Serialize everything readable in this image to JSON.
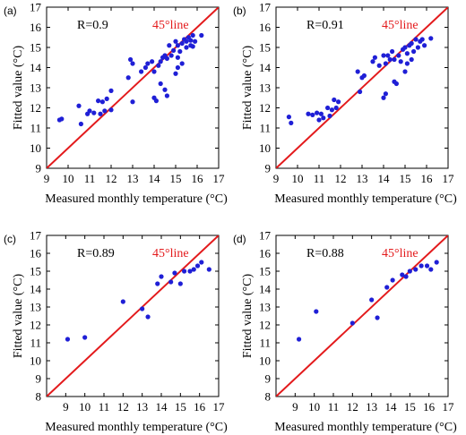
{
  "chart_data": [
    {
      "type": "scatter",
      "panel_label": "(a)",
      "r_label": "R=0.9",
      "reference_line_label": "45°line",
      "xlabel": "Measured monthly temperature (°C)",
      "ylabel": "Fitted value (°C)",
      "xlim": [
        9,
        17
      ],
      "ylim": [
        9,
        17
      ],
      "xticks": [
        9,
        10,
        11,
        12,
        13,
        14,
        15,
        16,
        17
      ],
      "yticks": [
        9,
        10,
        11,
        12,
        13,
        14,
        15,
        16,
        17
      ],
      "grid": false,
      "colors": {
        "points": "#1f1fd6",
        "reference_line": "#e31a1c"
      },
      "points": [
        [
          9.6,
          11.4
        ],
        [
          9.7,
          11.45
        ],
        [
          10.5,
          12.1
        ],
        [
          10.6,
          11.2
        ],
        [
          10.9,
          11.7
        ],
        [
          11.0,
          11.85
        ],
        [
          11.2,
          11.75
        ],
        [
          11.4,
          12.35
        ],
        [
          11.5,
          11.7
        ],
        [
          11.6,
          12.3
        ],
        [
          11.7,
          11.85
        ],
        [
          11.8,
          12.45
        ],
        [
          12.0,
          11.9
        ],
        [
          12.0,
          12.85
        ],
        [
          12.8,
          13.5
        ],
        [
          12.9,
          14.4
        ],
        [
          13.0,
          14.2
        ],
        [
          13.0,
          12.3
        ],
        [
          13.4,
          13.8
        ],
        [
          13.6,
          14.0
        ],
        [
          13.7,
          14.2
        ],
        [
          13.9,
          14.3
        ],
        [
          14.0,
          12.5
        ],
        [
          14.0,
          13.8
        ],
        [
          14.1,
          12.35
        ],
        [
          14.2,
          14.1
        ],
        [
          14.3,
          13.2
        ],
        [
          14.3,
          14.3
        ],
        [
          14.4,
          14.5
        ],
        [
          14.5,
          12.9
        ],
        [
          14.5,
          14.6
        ],
        [
          14.6,
          12.6
        ],
        [
          14.6,
          14.45
        ],
        [
          14.7,
          15.1
        ],
        [
          14.8,
          14.6
        ],
        [
          14.9,
          14.85
        ],
        [
          15.0,
          13.7
        ],
        [
          15.0,
          15.3
        ],
        [
          15.1,
          14.5
        ],
        [
          15.1,
          14.0
        ],
        [
          15.1,
          15.1
        ],
        [
          15.2,
          14.8
        ],
        [
          15.3,
          14.2
        ],
        [
          15.3,
          15.2
        ],
        [
          15.4,
          15.4
        ],
        [
          15.5,
          15.0
        ],
        [
          15.5,
          15.3
        ],
        [
          15.6,
          15.5
        ],
        [
          15.7,
          15.1
        ],
        [
          15.7,
          15.35
        ],
        [
          15.8,
          15.6
        ],
        [
          15.8,
          15.05
        ],
        [
          15.9,
          15.3
        ],
        [
          16.2,
          15.6
        ]
      ]
    },
    {
      "type": "scatter",
      "panel_label": "(b)",
      "r_label": "R=0.91",
      "reference_line_label": "45°line",
      "xlabel": "Measured monthly temperature (°C)",
      "ylabel": "Fitted value (°C)",
      "xlim": [
        9,
        17
      ],
      "ylim": [
        9,
        17
      ],
      "xticks": [
        9,
        10,
        11,
        12,
        13,
        14,
        15,
        16,
        17
      ],
      "yticks": [
        9,
        10,
        11,
        12,
        13,
        14,
        15,
        16,
        17
      ],
      "grid": false,
      "colors": {
        "points": "#1f1fd6",
        "reference_line": "#e31a1c"
      },
      "points": [
        [
          9.6,
          11.55
        ],
        [
          9.7,
          11.25
        ],
        [
          10.5,
          11.7
        ],
        [
          10.7,
          11.65
        ],
        [
          10.9,
          11.75
        ],
        [
          11.0,
          11.4
        ],
        [
          11.1,
          11.7
        ],
        [
          11.2,
          11.5
        ],
        [
          11.4,
          12.0
        ],
        [
          11.5,
          11.6
        ],
        [
          11.6,
          11.9
        ],
        [
          11.7,
          12.4
        ],
        [
          11.8,
          12.0
        ],
        [
          11.9,
          12.3
        ],
        [
          12.8,
          13.8
        ],
        [
          12.9,
          12.8
        ],
        [
          13.0,
          13.5
        ],
        [
          13.1,
          13.6
        ],
        [
          13.5,
          14.3
        ],
        [
          13.6,
          14.5
        ],
        [
          13.8,
          14.1
        ],
        [
          14.0,
          12.5
        ],
        [
          14.0,
          14.6
        ],
        [
          14.1,
          12.7
        ],
        [
          14.1,
          14.2
        ],
        [
          14.2,
          14.6
        ],
        [
          14.3,
          14.4
        ],
        [
          14.4,
          14.8
        ],
        [
          14.5,
          13.3
        ],
        [
          14.5,
          14.4
        ],
        [
          14.6,
          13.2
        ],
        [
          14.7,
          14.6
        ],
        [
          14.8,
          14.3
        ],
        [
          14.9,
          14.9
        ],
        [
          15.0,
          13.8
        ],
        [
          15.0,
          15.0
        ],
        [
          15.1,
          14.2
        ],
        [
          15.1,
          14.7
        ],
        [
          15.2,
          15.1
        ],
        [
          15.3,
          14.4
        ],
        [
          15.3,
          15.2
        ],
        [
          15.4,
          14.8
        ],
        [
          15.5,
          15.4
        ],
        [
          15.6,
          15.0
        ],
        [
          15.7,
          15.3
        ],
        [
          15.8,
          15.4
        ],
        [
          15.9,
          15.1
        ],
        [
          16.2,
          15.45
        ]
      ]
    },
    {
      "type": "scatter",
      "panel_label": "(c)",
      "r_label": "R=0.89",
      "reference_line_label": "45°line",
      "xlabel": "Measured monthly temperature (°C)",
      "ylabel": "Fitted value (°C)",
      "xlim": [
        8,
        17
      ],
      "ylim": [
        8,
        17
      ],
      "xticks": [
        9,
        10,
        11,
        12,
        13,
        14,
        15,
        16,
        17
      ],
      "yticks": [
        8,
        9,
        10,
        11,
        12,
        13,
        14,
        15,
        16,
        17
      ],
      "grid": false,
      "colors": {
        "points": "#1f1fd6",
        "reference_line": "#e31a1c"
      },
      "points": [
        [
          9.1,
          11.2
        ],
        [
          10.0,
          11.3
        ],
        [
          12.0,
          13.3
        ],
        [
          13.0,
          12.9
        ],
        [
          13.3,
          12.45
        ],
        [
          13.8,
          14.3
        ],
        [
          14.0,
          14.7
        ],
        [
          14.5,
          14.4
        ],
        [
          14.7,
          14.9
        ],
        [
          15.0,
          14.3
        ],
        [
          15.2,
          15.0
        ],
        [
          15.5,
          15.0
        ],
        [
          15.7,
          15.1
        ],
        [
          15.9,
          15.3
        ],
        [
          16.1,
          15.5
        ],
        [
          16.5,
          15.1
        ]
      ]
    },
    {
      "type": "scatter",
      "panel_label": "(d)",
      "r_label": "R=0.88",
      "reference_line_label": "45°line",
      "xlabel": "Measured monthly temperature (°C)",
      "ylabel": "Fitted value (°C)",
      "xlim": [
        8,
        17
      ],
      "ylim": [
        8,
        17
      ],
      "xticks": [
        9,
        10,
        11,
        12,
        13,
        14,
        15,
        16,
        17
      ],
      "yticks": [
        8,
        9,
        10,
        11,
        12,
        13,
        14,
        15,
        16,
        17
      ],
      "grid": false,
      "colors": {
        "points": "#1f1fd6",
        "reference_line": "#e31a1c"
      },
      "points": [
        [
          9.2,
          11.2
        ],
        [
          10.1,
          12.75
        ],
        [
          12.0,
          12.1
        ],
        [
          13.0,
          13.4
        ],
        [
          13.3,
          12.4
        ],
        [
          13.8,
          14.1
        ],
        [
          14.1,
          14.5
        ],
        [
          14.6,
          14.8
        ],
        [
          14.8,
          14.7
        ],
        [
          15.0,
          15.0
        ],
        [
          15.3,
          15.1
        ],
        [
          15.6,
          15.3
        ],
        [
          15.9,
          15.3
        ],
        [
          16.1,
          15.1
        ],
        [
          16.4,
          15.5
        ]
      ]
    }
  ]
}
